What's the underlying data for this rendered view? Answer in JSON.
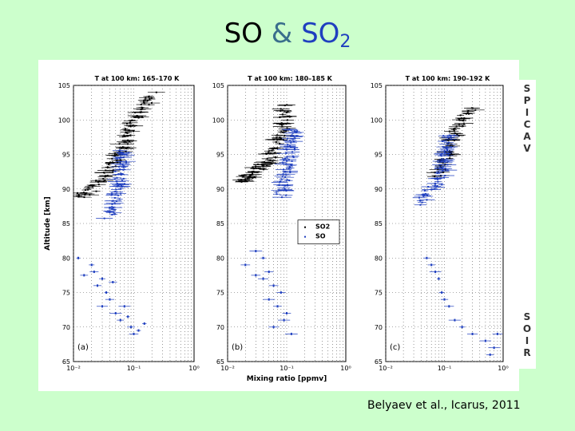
{
  "slide": {
    "title_so": "SO",
    "title_amp": "&",
    "title_so2_base": "SO",
    "title_so2_sub": "2",
    "citation": "Belyaev et al., Icarus, 2011"
  },
  "sidebar": {
    "spicav": [
      "S",
      "P",
      "I",
      "C",
      "A",
      "V"
    ],
    "soir": [
      "S",
      "O",
      "I",
      "R"
    ]
  },
  "colors": {
    "so2": "#000000",
    "so": "#1f3fbf",
    "background": "#ccffcc"
  },
  "chart_data": [
    {
      "type": "scatter",
      "panel": "(a)",
      "title": "T at 100 km: 165–170 K",
      "ylabel": "Altitude [km]",
      "xlabel": "",
      "xscale": "log",
      "xlim": [
        0.01,
        1
      ],
      "ylim": [
        65,
        105
      ],
      "xticks": [
        "10⁻²",
        "10⁻¹",
        "10⁰"
      ],
      "yticks": [
        105,
        100,
        95,
        90,
        85,
        80,
        75,
        70,
        65
      ],
      "series": [
        {
          "name": "SO2",
          "profile": {
            "alt": [
              89,
              90,
              92,
              94,
              96,
              98,
              100,
              102,
              104
            ],
            "mix": [
              0.012,
              0.02,
              0.035,
              0.05,
              0.065,
              0.08,
              0.1,
              0.15,
              0.2
            ]
          }
        },
        {
          "name": "SO",
          "profile": {
            "alt": [
              86,
              88,
              90,
              92,
              94,
              96
            ],
            "mix": [
              0.04,
              0.048,
              0.055,
              0.06,
              0.065,
              0.07
            ]
          },
          "sparse": [
            [
              0.012,
              80
            ],
            [
              0.022,
              78
            ],
            [
              0.03,
              77
            ],
            [
              0.025,
              76
            ],
            [
              0.035,
              75
            ],
            [
              0.04,
              74
            ],
            [
              0.03,
              73
            ],
            [
              0.05,
              72
            ],
            [
              0.06,
              71
            ],
            [
              0.09,
              70
            ],
            [
              0.1,
              69
            ],
            [
              0.12,
              69.5
            ],
            [
              0.07,
              73
            ],
            [
              0.045,
              76.5
            ],
            [
              0.02,
              79
            ],
            [
              0.015,
              77.5
            ],
            [
              0.08,
              71.5
            ],
            [
              0.15,
              70.5
            ]
          ]
        }
      ]
    },
    {
      "type": "scatter",
      "panel": "(b)",
      "title": "T at 100 km: 180–185 K",
      "ylabel": "",
      "xlabel": "Mixing ratio [ppmv]",
      "xscale": "log",
      "xlim": [
        0.01,
        1
      ],
      "ylim": [
        65,
        105
      ],
      "xticks": [
        "10⁻²",
        "10⁻¹",
        "10⁰"
      ],
      "yticks": [
        105,
        100,
        95,
        90,
        85,
        80,
        75,
        70,
        65
      ],
      "legend": [
        "SO2",
        "SO"
      ],
      "series": [
        {
          "name": "SO2",
          "profile": {
            "alt": [
              91,
              92,
              93,
              94,
              96,
              98,
              100,
              102
            ],
            "mix": [
              0.015,
              0.025,
              0.035,
              0.05,
              0.065,
              0.08,
              0.09,
              0.1
            ]
          }
        },
        {
          "name": "SO",
          "profile": {
            "alt": [
              89,
              91,
              93,
              95,
              97,
              99
            ],
            "mix": [
              0.08,
              0.09,
              0.1,
              0.11,
              0.12,
              0.13
            ]
          },
          "sparse": [
            [
              0.03,
              81
            ],
            [
              0.02,
              79
            ],
            [
              0.05,
              78
            ],
            [
              0.04,
              77
            ],
            [
              0.06,
              76
            ],
            [
              0.08,
              75
            ],
            [
              0.05,
              74
            ],
            [
              0.07,
              73
            ],
            [
              0.1,
              72
            ],
            [
              0.09,
              71
            ],
            [
              0.06,
              70
            ],
            [
              0.12,
              69
            ],
            [
              0.04,
              80
            ],
            [
              0.03,
              77.5
            ]
          ]
        }
      ]
    },
    {
      "type": "scatter",
      "panel": "(c)",
      "title": "T at 100 km: 190–192 K",
      "ylabel": "",
      "xlabel": "",
      "xscale": "log",
      "xlim": [
        0.01,
        1
      ],
      "ylim": [
        65,
        105
      ],
      "xticks": [
        "10⁻²",
        "10⁻¹",
        "10⁰"
      ],
      "yticks": [
        105,
        100,
        95,
        90,
        85,
        80,
        75,
        70,
        65
      ],
      "series": [
        {
          "name": "SO2",
          "profile": {
            "alt": [
              92,
              94,
              96,
              98,
              100,
              102
            ],
            "mix": [
              0.08,
              0.1,
              0.12,
              0.15,
              0.2,
              0.3
            ]
          }
        },
        {
          "name": "SO",
          "profile": {
            "alt": [
              88,
              90,
              92,
              94,
              96,
              98
            ],
            "mix": [
              0.04,
              0.06,
              0.09,
              0.1,
              0.11,
              0.12
            ]
          },
          "sparse": [
            [
              0.05,
              80
            ],
            [
              0.06,
              79
            ],
            [
              0.07,
              78
            ],
            [
              0.08,
              77
            ],
            [
              0.09,
              75
            ],
            [
              0.1,
              74
            ],
            [
              0.12,
              73
            ],
            [
              0.15,
              71
            ],
            [
              0.2,
              70
            ],
            [
              0.3,
              69
            ],
            [
              0.5,
              68
            ],
            [
              0.7,
              67
            ],
            [
              0.8,
              69
            ],
            [
              0.6,
              66
            ]
          ]
        }
      ]
    }
  ]
}
